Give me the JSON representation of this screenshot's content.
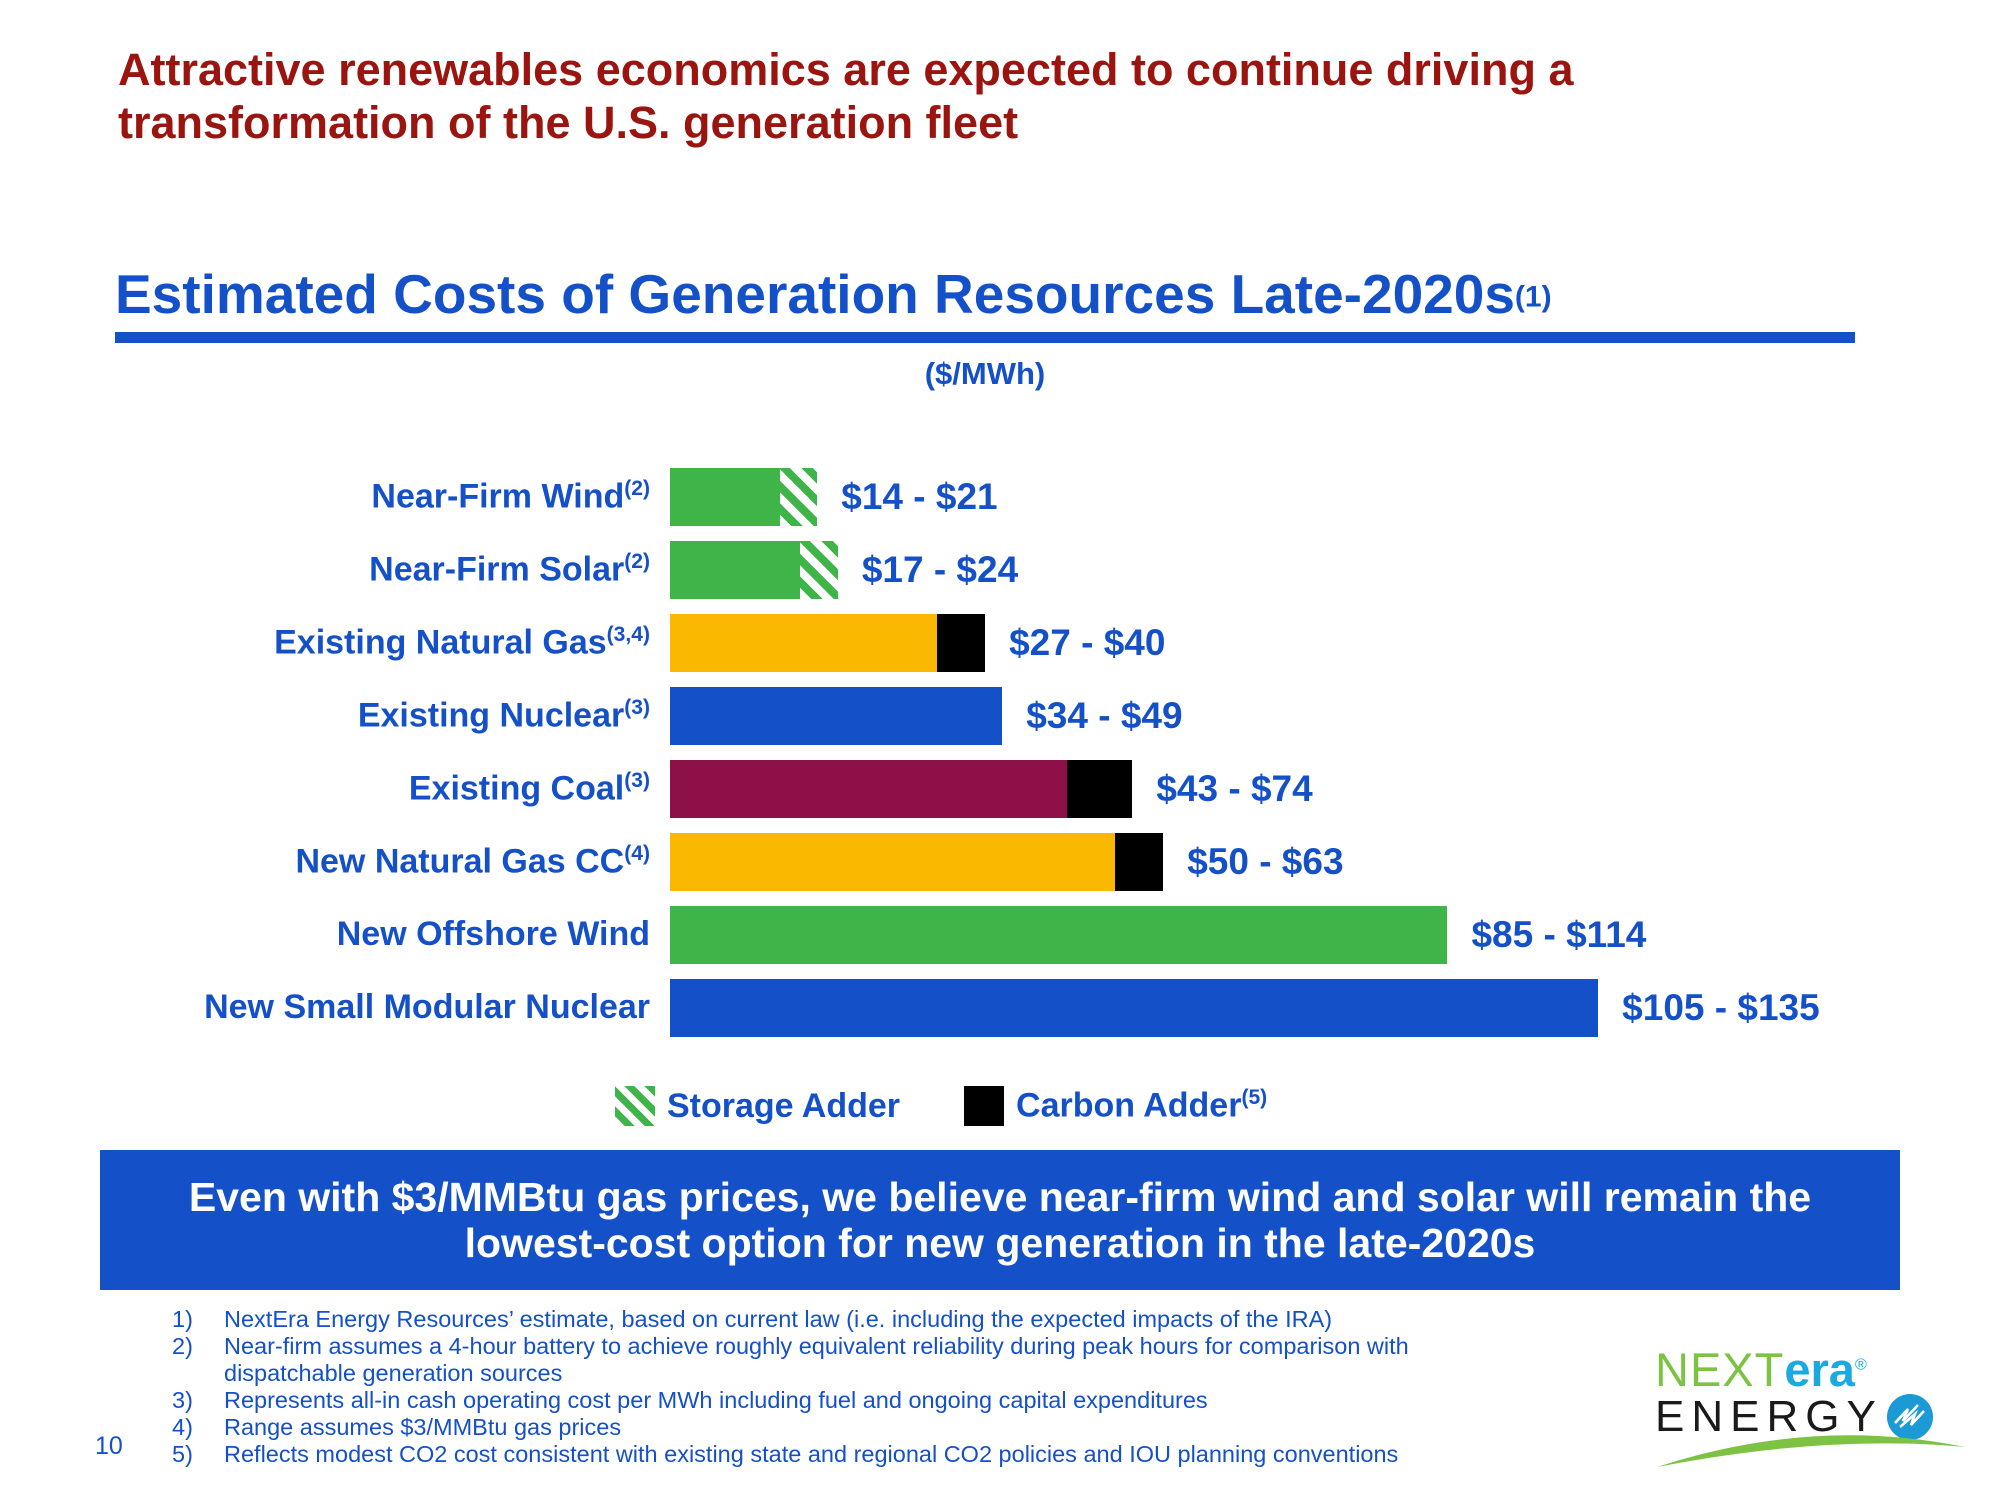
{
  "heading": {
    "text": "Attractive renewables economics are expected to continue driving a transformation of the U.S. generation fleet"
  },
  "chart": {
    "title": "Estimated Costs of Generation Resources Late-2020s",
    "title_sup": "(1)",
    "subtitle": "($/MWh)"
  },
  "chart_data": {
    "type": "bar",
    "orientation": "horizontal",
    "unit": "$/MWh",
    "xlim": [
      0,
      142
    ],
    "grid": false,
    "rows": [
      {
        "label": "Near-Firm Wind",
        "sup": "(2)",
        "value_label": "$14 - $21",
        "low": 14,
        "high": 21,
        "color": "green",
        "adder": "storage",
        "bar_solid": 16,
        "bar_total": 21.5
      },
      {
        "label": "Near-Firm Solar",
        "sup": "(2)",
        "value_label": "$17 - $24",
        "low": 17,
        "high": 24,
        "color": "green",
        "adder": "storage",
        "bar_solid": 19,
        "bar_total": 24.5
      },
      {
        "label": "Existing Natural Gas",
        "sup": "(3,4)",
        "value_label": "$27 - $40",
        "low": 27,
        "high": 40,
        "color": "orange",
        "adder": "carbon",
        "bar_solid": 39,
        "bar_total": 46
      },
      {
        "label": "Existing Nuclear",
        "sup": "(3)",
        "value_label": "$34 - $49",
        "low": 34,
        "high": 49,
        "color": "blue",
        "adder": null,
        "bar_solid": 48.5,
        "bar_total": 48.5
      },
      {
        "label": "Existing Coal",
        "sup": "(3)",
        "value_label": "$43 - $74",
        "low": 43,
        "high": 74,
        "color": "maroon",
        "adder": "carbon",
        "bar_solid": 58,
        "bar_total": 67.5
      },
      {
        "label": "New Natural Gas CC",
        "sup": "(4)",
        "value_label": "$50 - $63",
        "low": 50,
        "high": 63,
        "color": "orange",
        "adder": "carbon",
        "bar_solid": 65,
        "bar_total": 72
      },
      {
        "label": "New Offshore Wind",
        "sup": "",
        "value_label": "$85 - $114",
        "low": 85,
        "high": 114,
        "color": "green",
        "adder": null,
        "bar_solid": 113.5,
        "bar_total": 113.5
      },
      {
        "label": "New Small Modular Nuclear",
        "sup": "",
        "value_label": "$105 - $135",
        "low": 105,
        "high": 135,
        "color": "blue",
        "adder": null,
        "bar_solid": 135.5,
        "bar_total": 135.5
      }
    ],
    "legend": [
      {
        "label": "Storage Adder",
        "sup": "",
        "swatch": "storage"
      },
      {
        "label": "Carbon Adder",
        "sup": "(5)",
        "swatch": "carbon"
      }
    ],
    "legend_position": "bottom"
  },
  "banner": {
    "text": "Even with $3/MMBtu gas prices, we believe near-firm wind and solar will remain the lowest-cost option for new generation in the late-2020s"
  },
  "footnotes": [
    {
      "num": "1)",
      "text": "NextEra Energy Resources’ estimate, based on current law (i.e. including the expected impacts of the IRA)"
    },
    {
      "num": "2)",
      "text": "Near-firm assumes a 4-hour battery to achieve roughly equivalent reliability during peak hours for comparison with dispatchable generation sources"
    },
    {
      "num": "3)",
      "text": "Represents all-in cash operating cost per MWh including fuel and ongoing capital expenditures"
    },
    {
      "num": "4)",
      "text": "Range assumes $3/MMBtu gas prices"
    },
    {
      "num": "5)",
      "text": "Reflects modest CO2 cost consistent with existing state and regional CO2 policies and IOU planning conventions"
    }
  ],
  "page_number": "10",
  "logo": {
    "next": "NEXT",
    "era": "era",
    "reg": "®",
    "energy": "ENERGY"
  },
  "colors": {
    "heading_red": "#9A1510",
    "accent_blue": "#1450C8",
    "bar_green": "#3FB549",
    "bar_orange": "#FBB800",
    "bar_blue": "#1450C8",
    "bar_maroon": "#8E1049",
    "adder_black": "#000000",
    "banner_text": "#FFFFFF",
    "logo_green": "#7DC242",
    "logo_blue": "#1BA9E1",
    "logo_globe": "#1C9AD6",
    "logo_dark": "#1A1A1A"
  }
}
